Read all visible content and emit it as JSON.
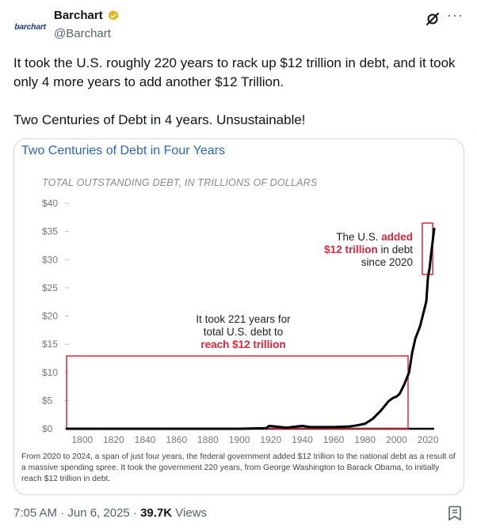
{
  "post": {
    "avatar_text": "barchart",
    "author_name": "Barchart",
    "author_handle": "@Barchart",
    "more_label": "···",
    "text_line1": "It took the U.S. roughly 220 years to rack up $12 trillion in debt, and it took only 4 more years to add another $12 Trillion.",
    "text_line2": "Two Centuries of Debt in 4 years. Unsustainable!",
    "timestamp": "7:05 AM · Jun 6, 2025 · ",
    "views_count": "39.7K",
    "views_label": " Views"
  },
  "colors": {
    "accent_blue": "#2e66b0",
    "highlight_red": "#d9263a",
    "verified_gold": "#e2b719"
  },
  "chart_data": {
    "type": "line",
    "title": "Two Centuries of Debt in Four Years",
    "subtitle": "TOTAL OUTSTANDING DEBT, IN TRILLIONS OF DOLLARS",
    "ylim": [
      0,
      40
    ],
    "xlim": [
      1790,
      2024
    ],
    "yticks": [
      "$40",
      "$35",
      "$30",
      "$25",
      "$20",
      "$15",
      "$10",
      "$5",
      "$0"
    ],
    "xticks": [
      "1800",
      "1820",
      "1840",
      "1860",
      "1880",
      "1900",
      "1920",
      "1940",
      "1960",
      "1980",
      "2000",
      "2020"
    ],
    "series": [
      {
        "name": "Total outstanding debt",
        "x": [
          1790,
          1800,
          1860,
          1900,
          1917,
          1919,
          1930,
          1940,
          1945,
          1960,
          1970,
          1975,
          1980,
          1985,
          1990,
          1995,
          1998,
          2000,
          2002,
          2005,
          2008,
          2010,
          2012,
          2015,
          2018,
          2019,
          2020,
          2021,
          2022,
          2023,
          2024
        ],
        "y": [
          0.0,
          0.0,
          0.0,
          0.0,
          0.1,
          0.5,
          0.2,
          0.5,
          0.3,
          0.3,
          0.4,
          0.6,
          0.9,
          1.8,
          3.2,
          4.9,
          5.5,
          5.7,
          6.2,
          7.9,
          10.0,
          13.5,
          16.0,
          18.2,
          21.5,
          22.7,
          26.9,
          28.4,
          30.9,
          33.2,
          35.5
        ]
      }
    ],
    "annotations": {
      "first_12_text_a": "It took 221 years for",
      "first_12_text_b": "total U.S. debt to",
      "first_12_text_c": "reach $12 trillion",
      "added_text_a": "The U.S. ",
      "added_text_b": "added",
      "added_text_c": "$12 trillion",
      "added_text_d": " in debt",
      "added_text_e": "since 2020"
    },
    "caption": "From 2020 to 2024, a span of just four years, the federal government added $12 trillion to the national debt as a result of a massive spending spree. It took the government 220 years, from George Washington to Barack Obama, to initially reach $12 trillion in debt."
  }
}
